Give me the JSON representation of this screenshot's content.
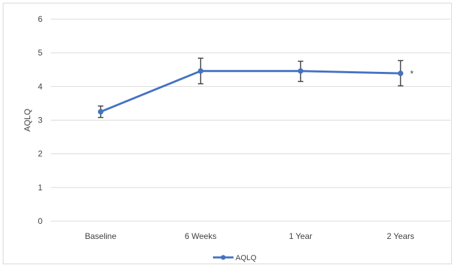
{
  "chart_data": {
    "type": "line",
    "title": "",
    "xlabel": "",
    "ylabel": "AQLQ",
    "categories": [
      "Baseline",
      "6 Weeks",
      "1 Year",
      "2 Years"
    ],
    "series": [
      {
        "name": "AQLQ",
        "color": "#4472c4",
        "values": [
          3.25,
          4.46,
          4.46,
          4.39
        ],
        "error_low": [
          3.08,
          4.08,
          4.15,
          4.02
        ],
        "error_high": [
          3.42,
          4.84,
          4.75,
          4.77
        ]
      }
    ],
    "ylim": [
      0,
      6
    ],
    "yticks": [
      0,
      1,
      2,
      3,
      4,
      5,
      6
    ],
    "grid": true,
    "legend_position": "bottom",
    "annotations": [
      {
        "text": "*",
        "category": "2 Years"
      }
    ]
  }
}
